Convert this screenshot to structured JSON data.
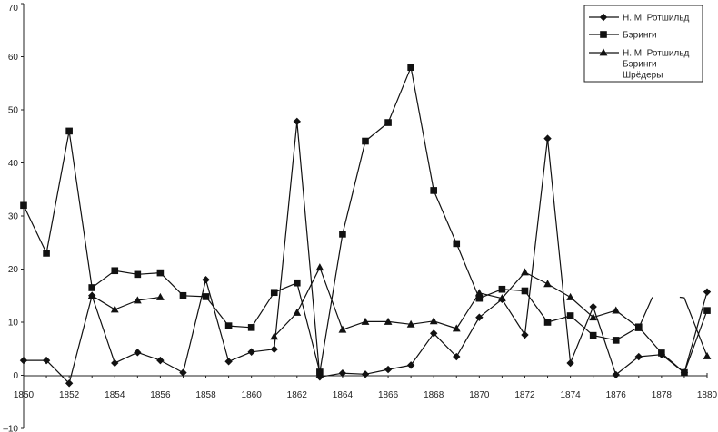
{
  "chart_data": {
    "type": "line",
    "title": "",
    "xlabel": "",
    "ylabel": "",
    "xlim": [
      1850,
      1880
    ],
    "ylim": [
      -10,
      70
    ],
    "x_ticks": [
      "1850",
      "1852",
      "1854",
      "1856",
      "1858",
      "1860",
      "1862",
      "1864",
      "1866",
      "1868",
      "1870",
      "1872",
      "1874",
      "1876",
      "1878",
      "1880"
    ],
    "y_ticks": [
      "70",
      "60",
      "50",
      "40",
      "30",
      "20",
      "10",
      "0",
      "–10"
    ],
    "grid": false,
    "legend_position": "top-right",
    "legend": [
      {
        "label_lines": [
          "Н. М. Ротшильд"
        ],
        "marker": "diamond"
      },
      {
        "label_lines": [
          "Бэринги"
        ],
        "marker": "square"
      },
      {
        "label_lines": [
          "Н. М. Ротшильд",
          "Бэринги",
          "Шрёдеры"
        ],
        "marker": "triangle"
      }
    ],
    "series": [
      {
        "marker": "diamond",
        "points": [
          [
            1850,
            2.8
          ],
          [
            1851,
            2.8
          ],
          [
            1852,
            -1.5
          ],
          [
            1853,
            15.0
          ],
          [
            1854,
            2.3
          ],
          [
            1855,
            4.3
          ],
          [
            1856,
            2.8
          ],
          [
            1857,
            0.5
          ],
          [
            1858,
            18.0
          ],
          [
            1859,
            2.6
          ],
          [
            1860,
            4.4
          ],
          [
            1861,
            4.9
          ],
          [
            1862,
            47.8
          ],
          [
            1863,
            -0.3
          ],
          [
            1864,
            0.4
          ],
          [
            1865,
            0.2
          ],
          [
            1866,
            1.1
          ],
          [
            1867,
            1.9
          ],
          [
            1868,
            7.9
          ],
          [
            1869,
            3.5
          ],
          [
            1870,
            10.9
          ],
          [
            1871,
            14.3
          ],
          [
            1872,
            7.6
          ],
          [
            1873,
            44.6
          ],
          [
            1874,
            2.3
          ],
          [
            1875,
            12.9
          ],
          [
            1876,
            0.1
          ],
          [
            1877,
            3.5
          ],
          [
            1878,
            3.9
          ],
          [
            1879,
            0.5
          ],
          [
            1880,
            15.7
          ]
        ],
        "segments": [
          [
            0,
            30
          ]
        ]
      },
      {
        "marker": "square",
        "points": [
          [
            1850,
            32.0
          ],
          [
            1851,
            23.0
          ],
          [
            1852,
            46.0
          ],
          [
            1853,
            16.5
          ],
          [
            1854,
            19.7
          ],
          [
            1855,
            19.0
          ],
          [
            1856,
            19.3
          ],
          [
            1857,
            15.0
          ],
          [
            1858,
            14.8
          ],
          [
            1859,
            9.3
          ],
          [
            1860,
            9.0
          ],
          [
            1861,
            15.6
          ],
          [
            1862,
            17.4
          ],
          [
            1863,
            0.6
          ],
          [
            1864,
            26.6
          ],
          [
            1865,
            44.1
          ],
          [
            1866,
            47.6
          ],
          [
            1867,
            58.0
          ],
          [
            1868,
            34.8
          ],
          [
            1869,
            24.8
          ],
          [
            1870,
            14.5
          ],
          [
            1871,
            16.2
          ],
          [
            1872,
            15.9
          ],
          [
            1873,
            10.0
          ],
          [
            1874,
            11.2
          ],
          [
            1875,
            7.5
          ],
          [
            1876,
            6.6
          ],
          [
            1877,
            9.1
          ],
          [
            1878,
            4.2
          ],
          [
            1879,
            0.5
          ],
          [
            1880,
            12.2
          ]
        ],
        "segments": [
          [
            0,
            30
          ]
        ]
      },
      {
        "marker": "triangle",
        "points": [
          [
            1853,
            15.0
          ],
          [
            1854,
            12.4
          ],
          [
            1855,
            14.1
          ],
          [
            1856,
            14.7
          ],
          [
            1861,
            7.3
          ],
          [
            1862,
            11.8
          ],
          [
            1863,
            20.3
          ],
          [
            1864,
            8.6
          ],
          [
            1865,
            10.1
          ],
          [
            1866,
            10.1
          ],
          [
            1867,
            9.6
          ],
          [
            1868,
            10.2
          ],
          [
            1869,
            8.8
          ],
          [
            1870,
            15.5
          ],
          [
            1871,
            14.5
          ],
          [
            1872,
            19.4
          ],
          [
            1873,
            17.2
          ],
          [
            1874,
            14.7
          ],
          [
            1875,
            10.9
          ],
          [
            1876,
            12.2
          ],
          [
            1877,
            8.9
          ],
          [
            1877.6,
            14.7
          ],
          [
            1878.8,
            14.7
          ],
          [
            1879,
            14.6
          ],
          [
            1880,
            3.6
          ]
        ],
        "marker_flags": [
          1,
          1,
          1,
          1,
          1,
          1,
          1,
          1,
          1,
          1,
          1,
          1,
          1,
          1,
          1,
          1,
          1,
          1,
          1,
          1,
          1,
          0,
          0,
          0,
          1
        ],
        "segments": [
          [
            0,
            3
          ],
          [
            4,
            21
          ],
          [
            22,
            24
          ]
        ]
      }
    ]
  }
}
